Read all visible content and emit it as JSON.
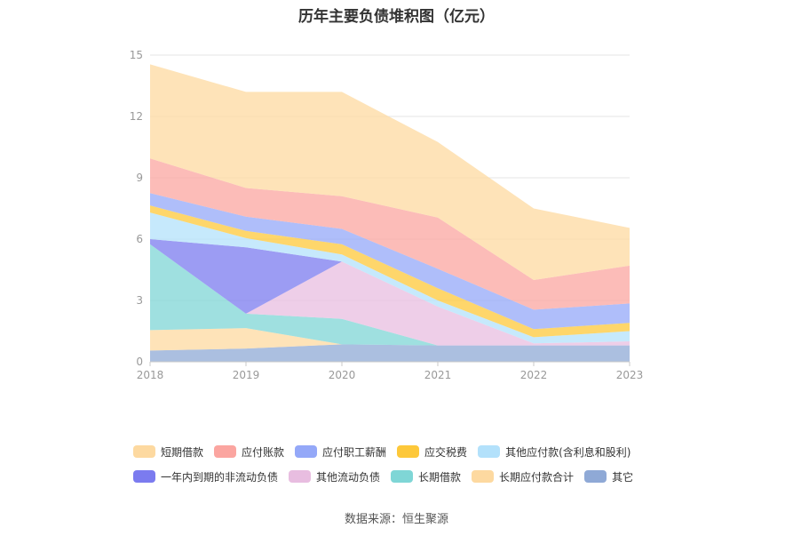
{
  "chart_data": {
    "type": "area",
    "stacked": true,
    "title": "历年主要负债堆积图（亿元）",
    "x": [
      "2018",
      "2019",
      "2020",
      "2021",
      "2022",
      "2023"
    ],
    "ylim": [
      0,
      15
    ],
    "yticks": [
      0,
      3,
      6,
      9,
      12,
      15
    ],
    "xlabel": "",
    "ylabel": "",
    "series": [
      {
        "name": "其它",
        "color": "#8fa9d6",
        "values": [
          0.55,
          0.65,
          0.85,
          0.8,
          0.8,
          0.8
        ]
      },
      {
        "name": "长期应付款合计",
        "color": "#fdd9a0",
        "values": [
          1.0,
          1.0,
          0.0,
          0.0,
          0.0,
          0.0
        ]
      },
      {
        "name": "长期借款",
        "color": "#7fd6d6",
        "values": [
          4.2,
          0.7,
          1.25,
          0.0,
          0.0,
          0.0
        ]
      },
      {
        "name": "其他流动负债",
        "color": "#e8bde0",
        "values": [
          0.0,
          0.0,
          2.8,
          1.9,
          0.1,
          0.2
        ]
      },
      {
        "name": "一年内到期的非流动负债",
        "color": "#7b7bef",
        "values": [
          0.25,
          3.25,
          0.0,
          0.0,
          0.0,
          0.0
        ]
      },
      {
        "name": "其他应付款(含利息和股利)",
        "color": "#b3e1fb",
        "values": [
          1.3,
          0.45,
          0.35,
          0.3,
          0.3,
          0.5
        ]
      },
      {
        "name": "应交税费",
        "color": "#fdc83a",
        "values": [
          0.35,
          0.35,
          0.5,
          0.6,
          0.4,
          0.4
        ]
      },
      {
        "name": "应付职工薪酬",
        "color": "#94a8f8",
        "values": [
          0.6,
          0.7,
          0.75,
          0.95,
          0.95,
          0.95
        ]
      },
      {
        "name": "应付账款",
        "color": "#fba5a0",
        "values": [
          1.7,
          1.4,
          1.6,
          2.5,
          1.45,
          1.85
        ]
      },
      {
        "name": "短期借款",
        "color": "#fdd9a0",
        "values": [
          4.6,
          4.7,
          5.1,
          3.7,
          3.5,
          1.85
        ]
      }
    ]
  },
  "legend": {
    "row1": [
      {
        "label": "短期借款",
        "color": "#fdd9a0"
      },
      {
        "label": "应付账款",
        "color": "#fba5a0"
      },
      {
        "label": "应付职工薪酬",
        "color": "#94a8f8"
      },
      {
        "label": "应交税费",
        "color": "#fdc83a"
      },
      {
        "label": "其他应付款(含利息和股利)",
        "color": "#b3e1fb"
      }
    ],
    "row2": [
      {
        "label": "一年内到期的非流动负债",
        "color": "#7b7bef"
      },
      {
        "label": "其他流动负债",
        "color": "#e8bde0"
      },
      {
        "label": "长期借款",
        "color": "#7fd6d6"
      },
      {
        "label": "长期应付款合计",
        "color": "#fdd9a0"
      },
      {
        "label": "其它",
        "color": "#8fa9d6"
      }
    ]
  },
  "source": "数据来源：恒生聚源"
}
